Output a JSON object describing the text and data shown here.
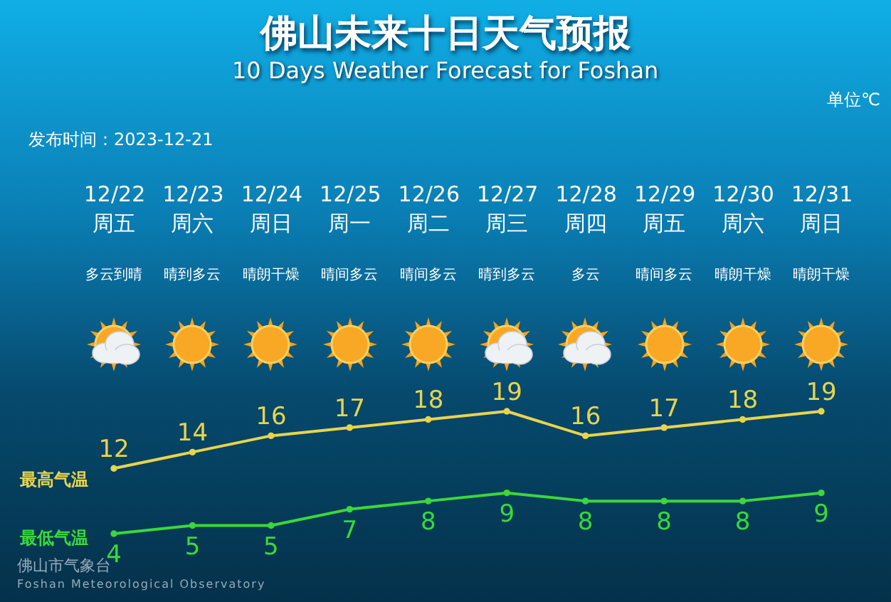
{
  "chart_data": {
    "type": "line",
    "title": "佛山未来十日天气预报",
    "subtitle": "10 Days Weather Forecast for Foshan",
    "categories": [
      "12/22",
      "12/23",
      "12/24",
      "12/25",
      "12/26",
      "12/27",
      "12/28",
      "12/29",
      "12/30",
      "12/31"
    ],
    "series": [
      {
        "name": "最高气温",
        "color": "#e8d44c",
        "values": [
          12,
          14,
          16,
          17,
          18,
          19,
          16,
          17,
          18,
          19
        ]
      },
      {
        "name": "最低气温",
        "color": "#3ad83a",
        "values": [
          4,
          5,
          5,
          7,
          8,
          9,
          8,
          8,
          8,
          9
        ]
      }
    ],
    "data_labels": true,
    "marker": "circle",
    "annotations": [
      "单位℃",
      "发布时间：2023-12-21",
      "周五",
      "周六",
      "周日",
      "周一",
      "周二",
      "周三",
      "周四",
      "周五",
      "周六",
      "周日",
      "多云到晴",
      "晴到多云",
      "晴朗干燥",
      "晴间多云",
      "晴间多云",
      "晴到多云",
      "多云",
      "晴间多云",
      "晴朗干燥",
      "晴朗干燥",
      "佛山市气象台",
      "Foshan Meteorological Observatory"
    ]
  }
}
